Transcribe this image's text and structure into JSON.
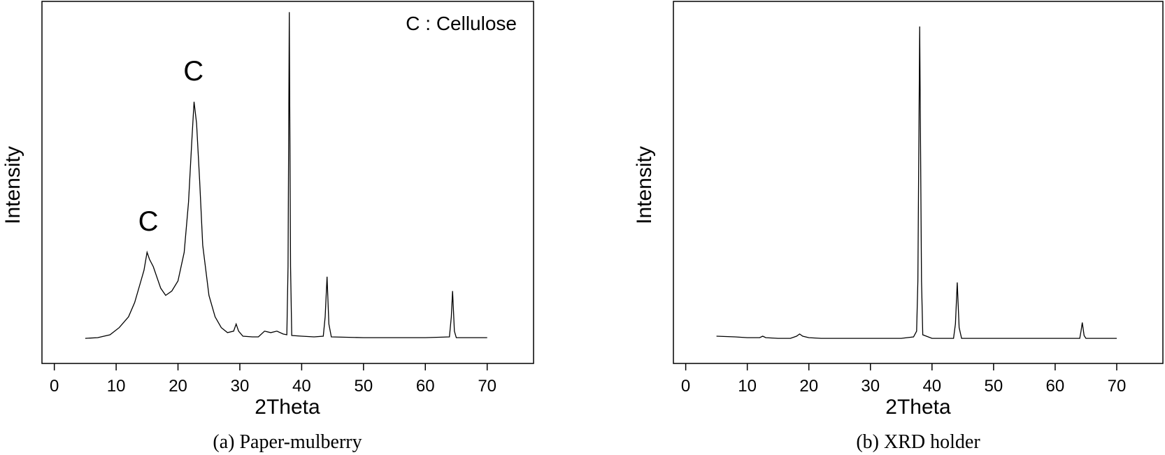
{
  "chart_data": [
    {
      "type": "line",
      "caption": "(a) Paper-mulberry",
      "xlabel": "2Theta",
      "ylabel": "Intensity",
      "xlim": [
        -2,
        77.5
      ],
      "ylim": [
        -3.5,
        47
      ],
      "xticks": [
        0,
        10,
        20,
        30,
        40,
        50,
        60,
        70
      ],
      "yticks_shown": false,
      "legend_text": "C : Cellulose",
      "legend_position": "top-right",
      "annotations": [
        {
          "text": "C",
          "x": 15.2,
          "y": 15
        },
        {
          "text": "C",
          "x": 22.5,
          "y": 36
        }
      ],
      "series": [
        {
          "color": "#000000",
          "points": [
            [
              5,
              0
            ],
            [
              7,
              0.1
            ],
            [
              9,
              0.5
            ],
            [
              10.5,
              1.5
            ],
            [
              12,
              3
            ],
            [
              13,
              5
            ],
            [
              14,
              8
            ],
            [
              14.5,
              9.5
            ],
            [
              15,
              12
            ],
            [
              15.4,
              11
            ],
            [
              16,
              10
            ],
            [
              16.6,
              8.5
            ],
            [
              17.2,
              7
            ],
            [
              18,
              6
            ],
            [
              19,
              6.6
            ],
            [
              20,
              8
            ],
            [
              21,
              12
            ],
            [
              21.7,
              19
            ],
            [
              22.2,
              27
            ],
            [
              22.6,
              33
            ],
            [
              23,
              30
            ],
            [
              23.5,
              22
            ],
            [
              24,
              13
            ],
            [
              25,
              6
            ],
            [
              26,
              3
            ],
            [
              27,
              1.5
            ],
            [
              28,
              0.8
            ],
            [
              29,
              1
            ],
            [
              29.4,
              2
            ],
            [
              29.8,
              1
            ],
            [
              30.5,
              0.3
            ],
            [
              32,
              0.2
            ],
            [
              33,
              0.2
            ],
            [
              34,
              1
            ],
            [
              35,
              0.8
            ],
            [
              36,
              1
            ],
            [
              37,
              0.6
            ],
            [
              37.6,
              0.5
            ],
            [
              37.8,
              10
            ],
            [
              38,
              45.5
            ],
            [
              38.2,
              10
            ],
            [
              38.4,
              0.4
            ],
            [
              40,
              0.3
            ],
            [
              42,
              0.2
            ],
            [
              43.5,
              0.3
            ],
            [
              43.8,
              3
            ],
            [
              44.1,
              8.6
            ],
            [
              44.4,
              2
            ],
            [
              44.8,
              0.2
            ],
            [
              50,
              0.1
            ],
            [
              55,
              0.1
            ],
            [
              60,
              0.1
            ],
            [
              63.9,
              0.2
            ],
            [
              64.2,
              3
            ],
            [
              64.4,
              6.6
            ],
            [
              64.7,
              1
            ],
            [
              65,
              0.1
            ],
            [
              70,
              0.1
            ]
          ]
        }
      ]
    },
    {
      "type": "line",
      "caption": "(b) XRD holder",
      "xlabel": "2Theta",
      "ylabel": "Intensity",
      "xlim": [
        -2,
        77.5
      ],
      "ylim": [
        -3.5,
        47
      ],
      "xticks": [
        0,
        10,
        20,
        30,
        40,
        50,
        60,
        70
      ],
      "yticks_shown": false,
      "series": [
        {
          "color": "#000000",
          "points": [
            [
              5,
              0.3
            ],
            [
              8,
              0.2
            ],
            [
              10,
              0.1
            ],
            [
              12,
              0.1
            ],
            [
              12.5,
              0.3
            ],
            [
              13,
              0.1
            ],
            [
              15,
              0
            ],
            [
              17,
              0
            ],
            [
              18,
              0.3
            ],
            [
              18.5,
              0.6
            ],
            [
              19,
              0.3
            ],
            [
              20,
              0.1
            ],
            [
              22,
              0
            ],
            [
              25,
              0
            ],
            [
              30,
              0
            ],
            [
              35,
              0
            ],
            [
              37,
              0.2
            ],
            [
              37.5,
              1
            ],
            [
              37.7,
              8
            ],
            [
              38,
              43.5
            ],
            [
              38.3,
              8
            ],
            [
              38.5,
              0.5
            ],
            [
              40,
              0
            ],
            [
              43.5,
              0
            ],
            [
              43.8,
              2
            ],
            [
              44.1,
              7.8
            ],
            [
              44.4,
              1.5
            ],
            [
              44.8,
              0
            ],
            [
              50,
              0
            ],
            [
              55,
              0
            ],
            [
              60,
              0
            ],
            [
              64,
              0
            ],
            [
              64.2,
              1
            ],
            [
              64.4,
              2.2
            ],
            [
              64.7,
              0.4
            ],
            [
              65,
              0
            ],
            [
              70,
              0
            ]
          ]
        }
      ]
    }
  ]
}
